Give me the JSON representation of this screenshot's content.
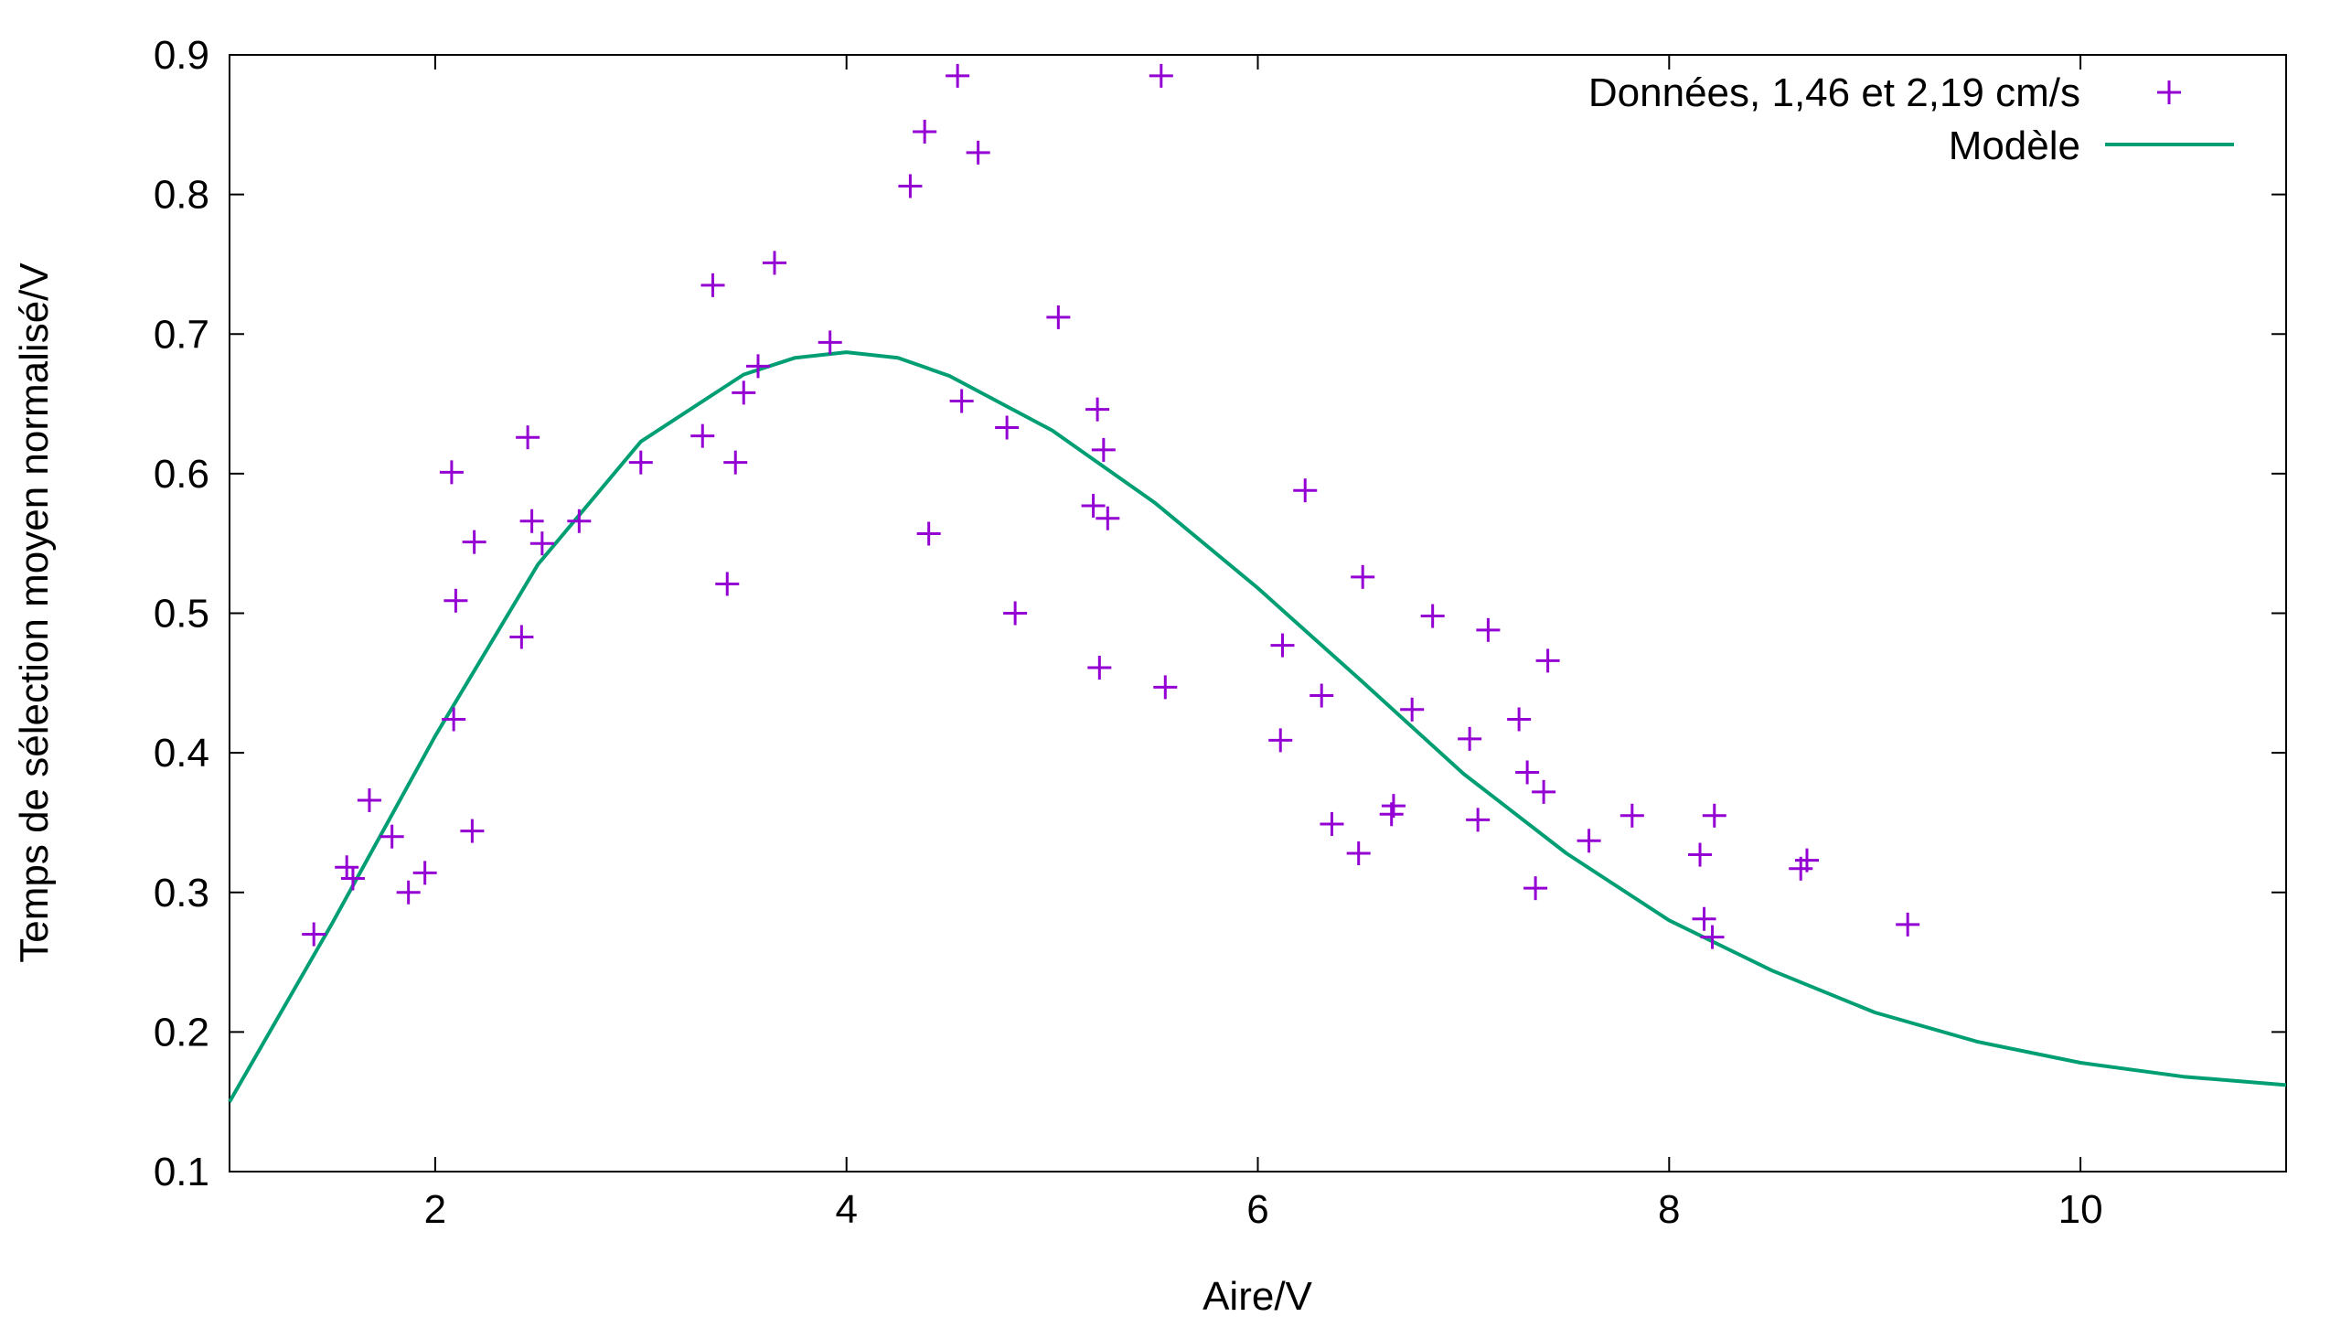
{
  "chart_data": {
    "type": "scatter",
    "title": "",
    "xlabel": "Aire/V",
    "ylabel": "Temps de sélection moyen normalisé/V",
    "xlim": [
      1,
      11
    ],
    "ylim": [
      0.1,
      0.9
    ],
    "xticks": [
      2,
      4,
      6,
      8,
      10
    ],
    "xtick_labels": [
      "2",
      "4",
      "6",
      "8",
      "10"
    ],
    "yticks": [
      0.1,
      0.2,
      0.3,
      0.4,
      0.5,
      0.6,
      0.7,
      0.8,
      0.9
    ],
    "ytick_labels": [
      "0.1",
      "0.2",
      "0.3",
      "0.4",
      "0.5",
      "0.6",
      "0.7",
      "0.8",
      "0.9"
    ],
    "grid": false,
    "legend_position": "top-right",
    "series": [
      {
        "name": "Données, 1,46 et 2,19 cm/s",
        "kind": "scatter",
        "marker": "plus",
        "color": "#9400d3",
        "points": [
          [
            1.41,
            0.27
          ],
          [
            1.57,
            0.318
          ],
          [
            1.6,
            0.31
          ],
          [
            1.68,
            0.366
          ],
          [
            1.79,
            0.34
          ],
          [
            1.87,
            0.3
          ],
          [
            1.95,
            0.314
          ],
          [
            2.08,
            0.601
          ],
          [
            2.09,
            0.424
          ],
          [
            2.1,
            0.509
          ],
          [
            2.18,
            0.344
          ],
          [
            2.19,
            0.551
          ],
          [
            2.42,
            0.483
          ],
          [
            2.45,
            0.626
          ],
          [
            2.47,
            0.566
          ],
          [
            2.52,
            0.55
          ],
          [
            2.7,
            0.566
          ],
          [
            3.0,
            0.608
          ],
          [
            3.3,
            0.627
          ],
          [
            3.35,
            0.735
          ],
          [
            3.42,
            0.521
          ],
          [
            3.46,
            0.608
          ],
          [
            3.5,
            0.658
          ],
          [
            3.57,
            0.677
          ],
          [
            3.65,
            0.751
          ],
          [
            3.92,
            0.694
          ],
          [
            4.31,
            0.806
          ],
          [
            4.38,
            0.845
          ],
          [
            4.4,
            0.557
          ],
          [
            4.54,
            0.885
          ],
          [
            4.56,
            0.652
          ],
          [
            4.64,
            0.83
          ],
          [
            4.78,
            0.633
          ],
          [
            4.82,
            0.5
          ],
          [
            5.03,
            0.712
          ],
          [
            5.2,
            0.577
          ],
          [
            5.22,
            0.646
          ],
          [
            5.23,
            0.461
          ],
          [
            5.25,
            0.617
          ],
          [
            5.27,
            0.568
          ],
          [
            5.53,
            0.885
          ],
          [
            5.55,
            0.447
          ],
          [
            6.12,
            0.477
          ],
          [
            6.11,
            0.409
          ],
          [
            6.23,
            0.588
          ],
          [
            6.31,
            0.441
          ],
          [
            6.36,
            0.349
          ],
          [
            6.49,
            0.328
          ],
          [
            6.51,
            0.526
          ],
          [
            6.65,
            0.356
          ],
          [
            6.66,
            0.362
          ],
          [
            6.75,
            0.431
          ],
          [
            6.85,
            0.498
          ],
          [
            7.03,
            0.41
          ],
          [
            7.07,
            0.352
          ],
          [
            7.12,
            0.488
          ],
          [
            7.27,
            0.424
          ],
          [
            7.31,
            0.386
          ],
          [
            7.35,
            0.303
          ],
          [
            7.39,
            0.372
          ],
          [
            7.41,
            0.466
          ],
          [
            7.61,
            0.337
          ],
          [
            7.82,
            0.355
          ],
          [
            8.15,
            0.327
          ],
          [
            8.17,
            0.281
          ],
          [
            8.21,
            0.268
          ],
          [
            8.22,
            0.355
          ],
          [
            8.64,
            0.317
          ],
          [
            8.67,
            0.323
          ],
          [
            9.16,
            0.277
          ]
        ]
      },
      {
        "name": "Modèle",
        "kind": "line",
        "color": "#009e73",
        "points": [
          [
            1.0,
            0.15
          ],
          [
            1.5,
            0.278
          ],
          [
            2.0,
            0.412
          ],
          [
            2.5,
            0.535
          ],
          [
            3.0,
            0.623
          ],
          [
            3.5,
            0.671
          ],
          [
            3.75,
            0.683
          ],
          [
            4.0,
            0.687
          ],
          [
            4.25,
            0.683
          ],
          [
            4.5,
            0.67
          ],
          [
            5.0,
            0.631
          ],
          [
            5.5,
            0.579
          ],
          [
            6.0,
            0.518
          ],
          [
            6.5,
            0.452
          ],
          [
            7.0,
            0.385
          ],
          [
            7.5,
            0.328
          ],
          [
            8.0,
            0.28
          ],
          [
            8.5,
            0.244
          ],
          [
            9.0,
            0.214
          ],
          [
            9.5,
            0.193
          ],
          [
            10.0,
            0.178
          ],
          [
            10.5,
            0.168
          ],
          [
            11.0,
            0.162
          ]
        ]
      }
    ]
  }
}
